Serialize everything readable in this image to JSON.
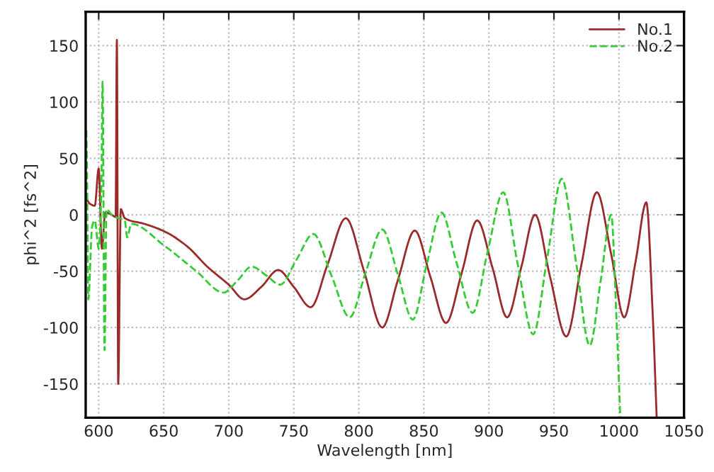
{
  "chart_data": {
    "type": "line",
    "xlabel": "Wavelength [nm]",
    "ylabel": "phi^2 [fs^2]",
    "xlim": [
      590,
      1050
    ],
    "ylim": [
      -180,
      180
    ],
    "xticks": [
      600,
      650,
      700,
      750,
      800,
      850,
      900,
      950,
      1000,
      1050
    ],
    "yticks": [
      -150,
      -100,
      -50,
      0,
      50,
      100,
      150
    ],
    "grid": true,
    "legend": "top right",
    "marker": "none",
    "series": [
      {
        "name": "No.1",
        "color": "#9b2a2a",
        "line_style": "solid",
        "x": [
          590,
          593,
          597,
          600,
          602.5,
          605,
          610,
          613,
          614,
          615,
          617,
          620,
          635,
          651,
          668,
          683.5,
          700,
          712,
          725,
          738,
          750,
          763,
          776,
          790,
          804,
          818,
          830,
          843,
          855,
          867,
          879,
          891,
          903,
          914,
          925,
          935.5,
          947,
          959.5,
          971,
          983,
          994,
          1004,
          1013,
          1021,
          1026,
          1029
        ],
        "values": [
          16,
          10,
          8,
          41,
          -30,
          2,
          0,
          -2,
          155,
          -150,
          5,
          -3,
          -8,
          -15,
          -28,
          -46,
          -62,
          -75,
          -64,
          -49,
          -64,
          -82,
          -44,
          -3,
          -50,
          -100,
          -58,
          -14,
          -55,
          -96,
          -52,
          -5,
          -48,
          -91,
          -46,
          0,
          -55,
          -108,
          -45,
          20,
          -35,
          -91,
          -40,
          11,
          -90,
          -180
        ]
      },
      {
        "name": "No.2",
        "color": "#33cc33",
        "line_style": "dashed",
        "x": [
          590.5,
          591,
          592,
          595,
          597,
          600,
          602,
          603,
          604.5,
          606,
          610,
          615,
          620,
          622,
          625,
          650,
          675,
          696,
          707,
          717.5,
          729,
          739.5,
          752,
          765,
          779,
          793,
          805,
          818,
          830,
          841.5,
          852,
          863.5,
          875,
          887.5,
          899,
          911,
          922,
          934,
          945,
          956,
          967,
          977.5,
          986,
          994,
          998,
          1001
        ],
        "values": [
          75,
          40,
          -75,
          -10,
          -5,
          -30,
          20,
          118,
          -120,
          5,
          0,
          -3,
          -5,
          -20,
          -8,
          -27,
          -50,
          -69,
          -58,
          -46,
          -54,
          -62,
          -40,
          -17,
          -54,
          -91,
          -52,
          -13,
          -53,
          -93,
          -45,
          2,
          -42,
          -87,
          -33,
          20,
          -43,
          -106,
          -37,
          32,
          -42,
          -116,
          -58,
          0,
          -90,
          -180
        ]
      }
    ]
  }
}
